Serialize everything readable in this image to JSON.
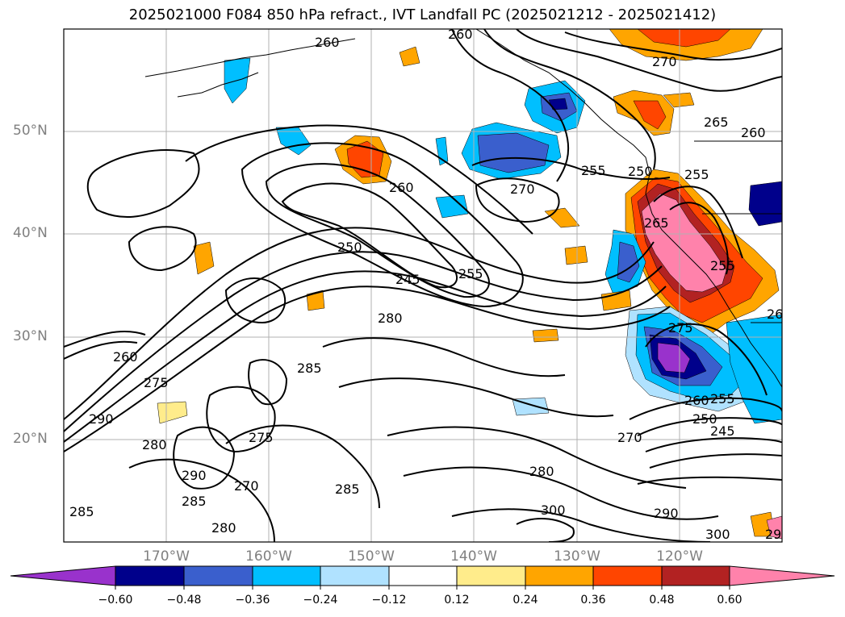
{
  "title": "2025021000 F084 850 hPa refract., IVT Landfall PC (2025021212 - 2025021412)",
  "lat_labels": [
    "50°N",
    "40°N",
    "30°N",
    "20°N"
  ],
  "lon_labels": [
    "170°W",
    "160°W",
    "150°W",
    "140°W",
    "130°W",
    "120°W"
  ],
  "colorbar": {
    "tick_labels": [
      "−0.60",
      "−0.48",
      "−0.36",
      "−0.24",
      "−0.12",
      "0.12",
      "0.24",
      "0.36",
      "0.48",
      "0.60"
    ],
    "colors": [
      "#9932cc",
      "#00008b",
      "#3a5fcd",
      "#00bfff",
      "#b0e2ff",
      "#ffffff",
      "#ffec8b",
      "#ffa500",
      "#ff4500",
      "#b22222",
      "#ff82ab"
    ]
  },
  "contour_labels": [
    "260",
    "260",
    "270",
    "265",
    "260",
    "255",
    "255",
    "250",
    "260",
    "270",
    "265",
    "255",
    "250",
    "245",
    "255",
    "280",
    "275",
    "260",
    "255",
    "250",
    "245",
    "260",
    "275",
    "270",
    "285",
    "280",
    "290",
    "290",
    "285",
    "275",
    "285",
    "270",
    "280",
    "280",
    "300",
    "290",
    "300",
    "285",
    "29",
    "26"
  ]
}
